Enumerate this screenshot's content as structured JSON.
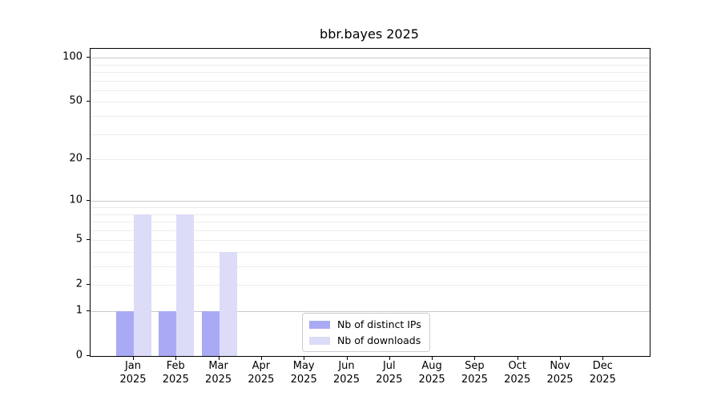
{
  "chart_data": {
    "type": "bar",
    "title": "bbr.bayes 2025",
    "xlabel": "",
    "ylabel": "",
    "categories": [
      "Jan 2025",
      "Feb 2025",
      "Mar 2025",
      "Apr 2025",
      "May 2025",
      "Jun 2025",
      "Jul 2025",
      "Aug 2025",
      "Sep 2025",
      "Oct 2025",
      "Nov 2025",
      "Dec 2025"
    ],
    "series": [
      {
        "name": "Nb of distinct IPs",
        "color": "#a9a9f4",
        "values": [
          1,
          1,
          1,
          0,
          0,
          0,
          0,
          0,
          0,
          0,
          0,
          0
        ]
      },
      {
        "name": "Nb of downloads",
        "color": "#dcdcf8",
        "values": [
          8,
          8,
          4,
          0,
          0,
          0,
          0,
          0,
          0,
          0,
          0,
          0
        ]
      }
    ],
    "y_axis": {
      "scale": "log10(1+y)",
      "tick_values": [
        0,
        1,
        2,
        5,
        10,
        20,
        50,
        100
      ],
      "tick_labels": [
        "0",
        "1",
        "2",
        "5",
        "10",
        "20",
        "50",
        "100"
      ],
      "ylim": [
        0,
        115
      ]
    },
    "grid": {
      "on": true,
      "major_values": [
        1,
        10,
        100
      ],
      "minor_values": [
        2,
        3,
        4,
        5,
        6,
        7,
        8,
        9,
        20,
        30,
        40,
        50,
        60,
        70,
        80,
        90
      ],
      "major_color": "#c9c9c9",
      "minor_color": "#ececec"
    },
    "legend": {
      "position": "bottom-center",
      "entries": [
        "Nb of distinct IPs",
        "Nb of downloads"
      ]
    },
    "colors": {
      "axis": "#000000",
      "background": "#ffffff",
      "legend_border": "#cccccc"
    }
  }
}
